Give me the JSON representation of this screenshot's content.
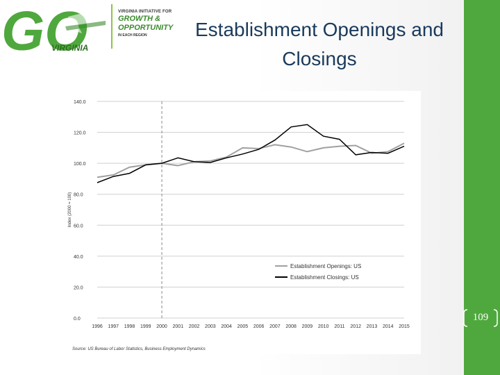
{
  "title_line1": "Establishment Openings and",
  "title_line2": "Closings",
  "logo": {
    "small_text": "VIRGINIA INITIATIVE FOR",
    "big_line1": "GROWTH &",
    "big_line2": "OPPORTUNITY",
    "region_text": "IN EACH REGION",
    "go_text": "GO",
    "virginia_text": "VIRGINIA"
  },
  "page_number": "109",
  "colors": {
    "green": "#4fa83d",
    "title": "#1a3a5c",
    "openings": "#a0a0a0",
    "closings": "#000000"
  },
  "chart_data": {
    "type": "line",
    "x": [
      "1996",
      "1997",
      "1998",
      "1999",
      "2000",
      "2001",
      "2002",
      "2003",
      "2004",
      "2005",
      "2006",
      "2007",
      "2008",
      "2009",
      "2010",
      "2011",
      "2012",
      "2013",
      "2014",
      "2015"
    ],
    "series": [
      {
        "name": "Establishment Openings: US",
        "color": "#a0a0a0",
        "values": [
          91.0,
          92.5,
          97.5,
          99.0,
          100.0,
          98.5,
          101.0,
          101.5,
          104.0,
          110.0,
          109.5,
          112.0,
          110.5,
          107.5,
          110.0,
          111.0,
          111.5,
          106.5,
          107.5,
          113.0
        ]
      },
      {
        "name": "Establishment Closings: US",
        "color": "#000000",
        "values": [
          87.5,
          91.5,
          93.5,
          99.0,
          100.0,
          103.5,
          101.0,
          100.5,
          103.5,
          106.0,
          109.0,
          115.0,
          123.5,
          125.0,
          117.5,
          115.5,
          105.5,
          107.0,
          106.5,
          111.0
        ]
      }
    ],
    "yticks": [
      "0.0",
      "20.0",
      "40.0",
      "60.0",
      "80.0",
      "100.0",
      "120.0",
      "140.0"
    ],
    "ylim": [
      0,
      140
    ],
    "ylabel": "Index (2000 = 100)",
    "reference_line_x": "2000",
    "source": "Source: US Bureau of Labor Statistics, Business Employment Dynamics",
    "legend_position": "lower-right"
  }
}
